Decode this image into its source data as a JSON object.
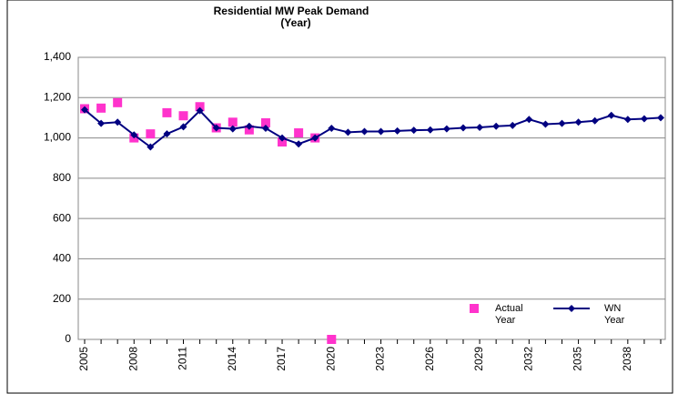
{
  "chart_data": {
    "type": "line",
    "title": "Residential MW Peak Demand",
    "subtitle": "(Year)",
    "categories": [
      "2005",
      null,
      null,
      "2008",
      null,
      null,
      "2011",
      null,
      null,
      "2014",
      null,
      null,
      "2017",
      null,
      null,
      "2020",
      null,
      null,
      "2023",
      null,
      null,
      "2026",
      null,
      null,
      "2029",
      null,
      null,
      "2032",
      null,
      null,
      "2035",
      null,
      null,
      "2038",
      null,
      null
    ],
    "series": [
      {
        "name": "Actual Year",
        "color": "#ff33cc",
        "marker": "square",
        "line": false,
        "values": [
          1145,
          1148,
          1175,
          1000,
          1020,
          1125,
          1110,
          1155,
          1050,
          1078,
          1040,
          1075,
          980,
          1025,
          1000,
          0,
          null,
          null,
          null,
          null,
          null,
          null,
          null,
          null,
          null,
          null,
          null,
          null,
          null,
          null,
          null,
          null,
          null,
          null,
          null,
          null
        ]
      },
      {
        "name": "WN Year",
        "color": "#000080",
        "marker": "diamond",
        "line": true,
        "values": [
          1140,
          1072,
          1078,
          1015,
          955,
          1020,
          1055,
          1135,
          1050,
          1045,
          1058,
          1048,
          1000,
          970,
          1000,
          1048,
          1028,
          1032,
          1032,
          1035,
          1038,
          1040,
          1045,
          1050,
          1052,
          1058,
          1062,
          1092,
          1068,
          1072,
          1078,
          1085,
          1112,
          1092,
          1095,
          1100
        ]
      }
    ],
    "ylim": [
      0,
      1400
    ],
    "yticks": [
      0,
      200,
      400,
      600,
      800,
      {
        "value": 1000,
        "label": "1,000"
      },
      {
        "value": 1200,
        "label": "1,200"
      },
      {
        "value": 1400,
        "label": "1,400"
      }
    ],
    "grid": true,
    "legend": "lower right"
  }
}
